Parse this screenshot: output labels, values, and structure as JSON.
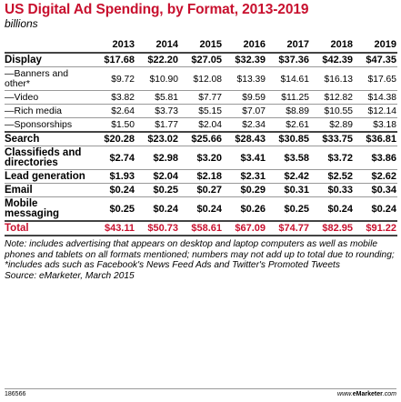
{
  "chart_data": {
    "type": "table",
    "title": "US Digital Ad Spending, by Format, 2013-2019",
    "subtitle": "billions",
    "columns": [
      "2013",
      "2014",
      "2015",
      "2016",
      "2017",
      "2018",
      "2019"
    ],
    "rows": [
      {
        "label": "Display",
        "style": "bold heavy",
        "values": [
          "$17.68",
          "$22.20",
          "$27.05",
          "$32.39",
          "$37.36",
          "$42.39",
          "$47.35"
        ]
      },
      {
        "label": "—Banners and other*",
        "style": "sub",
        "values": [
          "$9.72",
          "$10.90",
          "$12.08",
          "$13.39",
          "$14.61",
          "$16.13",
          "$17.65"
        ]
      },
      {
        "label": "—Video",
        "style": "sub",
        "values": [
          "$3.82",
          "$5.81",
          "$7.77",
          "$9.59",
          "$11.25",
          "$12.82",
          "$14.38"
        ]
      },
      {
        "label": "—Rich media",
        "style": "sub",
        "values": [
          "$2.64",
          "$3.73",
          "$5.15",
          "$7.07",
          "$8.89",
          "$10.55",
          "$12.14"
        ]
      },
      {
        "label": "—Sponsorships",
        "style": "sub",
        "values": [
          "$1.50",
          "$1.77",
          "$2.04",
          "$2.34",
          "$2.61",
          "$2.89",
          "$3.18"
        ]
      },
      {
        "label": "Search",
        "style": "bold heavy",
        "values": [
          "$20.28",
          "$23.02",
          "$25.66",
          "$28.43",
          "$30.85",
          "$33.75",
          "$36.81"
        ]
      },
      {
        "label": "Classifieds and directories",
        "style": "bold",
        "values": [
          "$2.74",
          "$2.98",
          "$3.20",
          "$3.41",
          "$3.58",
          "$3.72",
          "$3.86"
        ]
      },
      {
        "label": "Lead generation",
        "style": "bold",
        "values": [
          "$1.93",
          "$2.04",
          "$2.18",
          "$2.31",
          "$2.42",
          "$2.52",
          "$2.62"
        ]
      },
      {
        "label": "Email",
        "style": "bold",
        "values": [
          "$0.24",
          "$0.25",
          "$0.27",
          "$0.29",
          "$0.31",
          "$0.33",
          "$0.34"
        ]
      },
      {
        "label": "Mobile messaging",
        "style": "bold",
        "values": [
          "$0.25",
          "$0.24",
          "$0.24",
          "$0.26",
          "$0.25",
          "$0.24",
          "$0.24"
        ]
      },
      {
        "label": "Total",
        "style": "total",
        "values": [
          "$43.11",
          "$50.73",
          "$58.61",
          "$67.09",
          "$74.77",
          "$82.95",
          "$91.22"
        ]
      }
    ],
    "note": "Note: includes advertising that appears on desktop and laptop computers as well as mobile phones and tablets on all formats mentioned; numbers may not add up to total due to rounding; *includes ads such as Facebook's News Feed Ads and Twitter's Promoted Tweets",
    "source": "Source: eMarketer, March 2015",
    "chart_id": "186566",
    "site": "www.eMarketer.com"
  },
  "colors": {
    "title": "#c8102e",
    "total": "#c8102e",
    "rule": "#999999"
  }
}
